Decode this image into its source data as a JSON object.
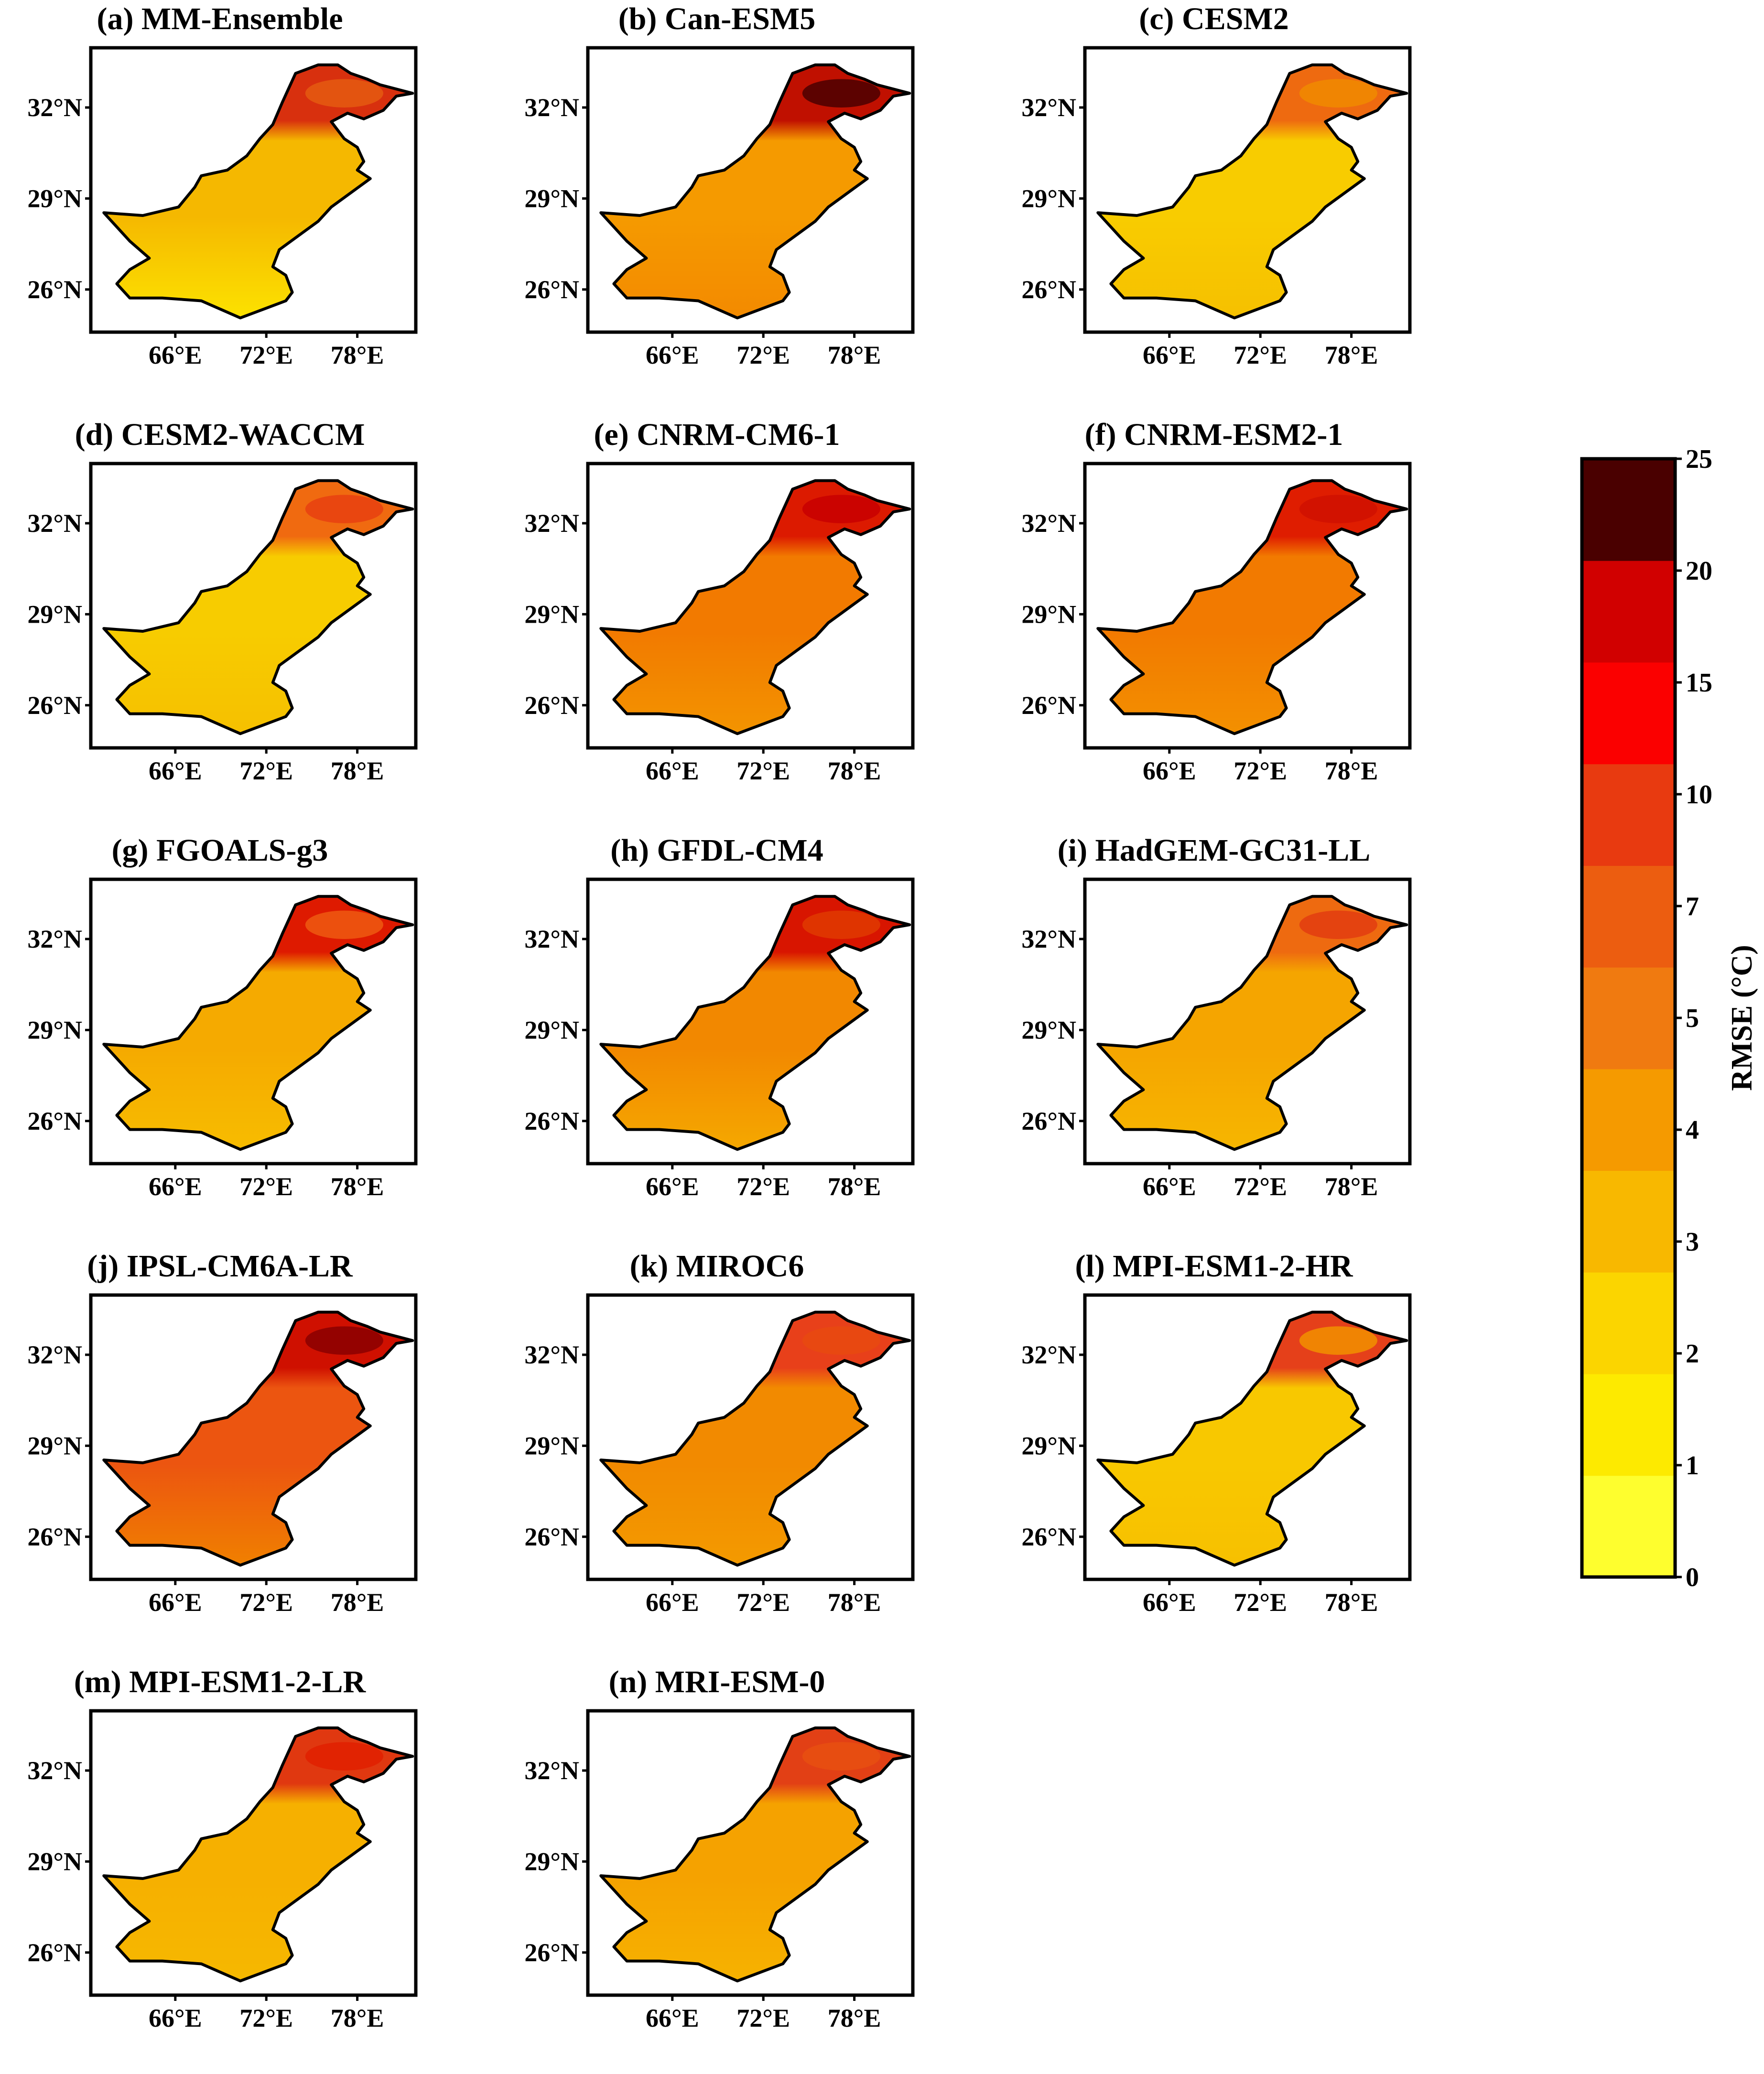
{
  "figure": {
    "axis_lat_labels": [
      "32°N",
      "29°N",
      "26°N"
    ],
    "axis_lon_labels": [
      "66°E",
      "72°E",
      "78°E"
    ],
    "panels": [
      {
        "label": "(a) MM-Ensemble",
        "north": "#d8300e",
        "mid": "#f5b800",
        "south": "#fce200",
        "hot": "#e55a10"
      },
      {
        "label": "(b) Can-ESM5",
        "north": "#c01000",
        "mid": "#f59a00",
        "south": "#f38a00",
        "hot": "#4a0000"
      },
      {
        "label": "(c) CESM2",
        "north": "#ee6a10",
        "mid": "#f8cc00",
        "south": "#f6c000",
        "hot": "#f08a00"
      },
      {
        "label": "(d) CESM2-WACCM",
        "north": "#f06a10",
        "mid": "#f7cc00",
        "south": "#f6c000",
        "hot": "#e84010"
      },
      {
        "label": "(e) CNRM-CM6-1",
        "north": "#dc1a00",
        "mid": "#f27a00",
        "south": "#f39400",
        "hot": "#c80000"
      },
      {
        "label": "(f) CNRM-ESM2-1",
        "north": "#df1d00",
        "mid": "#f27a00",
        "south": "#f39000",
        "hot": "#d01000"
      },
      {
        "label": "(g) FGOALS-g3",
        "north": "#de1a00",
        "mid": "#f5aa00",
        "south": "#f7bc00",
        "hot": "#ee5a10"
      },
      {
        "label": "(h) GFDL-CM4",
        "north": "#d81500",
        "mid": "#f28800",
        "south": "#f5a800",
        "hot": "#e03a00"
      },
      {
        "label": "(i) HadGEM-GC31-LL",
        "north": "#ee6a10",
        "mid": "#f5a500",
        "south": "#f6b600",
        "hot": "#e23c10"
      },
      {
        "label": "(j) IPSL-CM6A-LR",
        "north": "#cf1000",
        "mid": "#ec5510",
        "south": "#f08000",
        "hot": "#8a0000"
      },
      {
        "label": "(k) MIROC6",
        "north": "#e8401a",
        "mid": "#f28a00",
        "south": "#f39a00",
        "hot": "#e84a10"
      },
      {
        "label": "(l) MPI-ESM1-2-HR",
        "north": "#e5401a",
        "mid": "#f8c800",
        "south": "#f7c000",
        "hot": "#f29000"
      },
      {
        "label": "(m) MPI-ESM1-2-LR",
        "north": "#e03810",
        "mid": "#f6b000",
        "south": "#f6b800",
        "hot": "#e02000"
      },
      {
        "label": "(n) MRI-ESM-0",
        "north": "#e24015",
        "mid": "#f5a200",
        "south": "#f6b200",
        "hot": "#e85010"
      }
    ]
  },
  "colorbar": {
    "title": "RMSE (°C)",
    "ticks": [
      "0",
      "1",
      "2",
      "3",
      "4",
      "5",
      "7",
      "10",
      "15",
      "20",
      "25"
    ],
    "colors": [
      "#fefe2e",
      "#fdea00",
      "#fbd500",
      "#f8b800",
      "#f59a00",
      "#f07a10",
      "#ec5d10",
      "#e83a10",
      "#fb0000",
      "#d10000",
      "#4a0000"
    ]
  }
}
